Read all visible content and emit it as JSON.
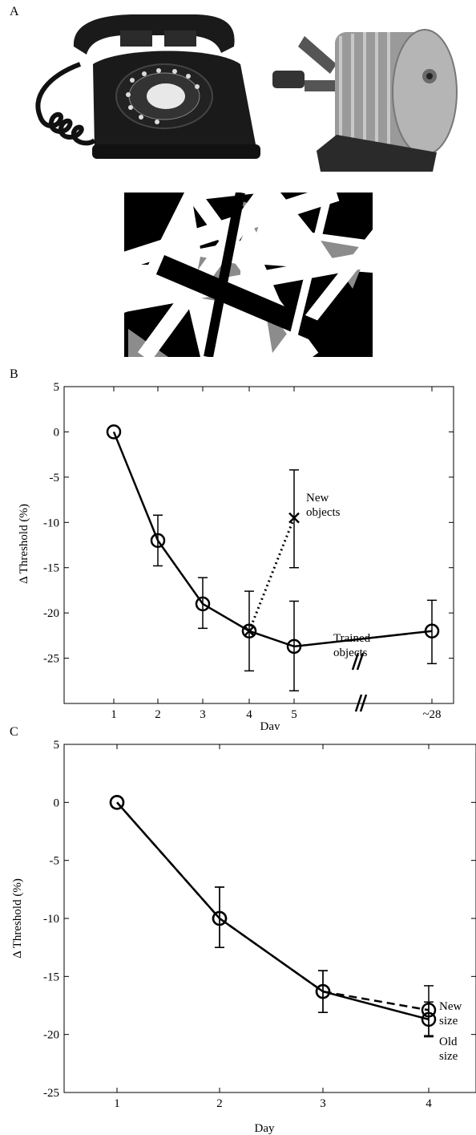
{
  "panels": {
    "a": "A",
    "b": "B",
    "c": "C"
  },
  "colors": {
    "ink": "#000000",
    "phone": "#1a1a1a",
    "metal": "#9a9a9a",
    "mask_gray": "#8c8c8c"
  },
  "icons": {
    "telephone": "rotary-telephone-icon",
    "sharpener": "pencil-sharpener-icon",
    "mask": "noise-mask-image"
  },
  "chart_data": [
    {
      "type": "line",
      "xlabel": "Day",
      "ylabel": "Δ Threshold (%)",
      "x_tick_labels": [
        "1",
        "2",
        "3",
        "4",
        "5",
        "~28"
      ],
      "yticks": [
        5,
        0,
        -5,
        -10,
        -15,
        -20,
        -25
      ],
      "ylim": [
        -30,
        5
      ],
      "axis_break": true,
      "series": [
        {
          "name": "Trained objects",
          "style": "solid",
          "marker": "circle",
          "x": [
            "1",
            "2",
            "3",
            "4",
            "5",
            "~28"
          ],
          "values": [
            0,
            -12,
            -19,
            -22,
            -23.7,
            -22
          ],
          "err_low": [
            null,
            -14.8,
            -21.7,
            -26.4,
            -28.6,
            -25.6
          ],
          "err_high": [
            null,
            -9.2,
            -16.1,
            -17.6,
            -18.7,
            -18.6
          ]
        },
        {
          "name": "New objects",
          "style": "dotted",
          "marker": "x",
          "x": [
            "4",
            "5"
          ],
          "values": [
            -22,
            -9.5
          ],
          "err_low": [
            null,
            -15
          ],
          "err_high": [
            null,
            -4.2
          ]
        }
      ]
    },
    {
      "type": "line",
      "xlabel": "Day",
      "ylabel": "Δ Threshold (%)",
      "x_tick_labels": [
        "1",
        "2",
        "3",
        "4"
      ],
      "yticks": [
        5,
        0,
        -5,
        -10,
        -15,
        -20,
        -25
      ],
      "ylim": [
        -25,
        5
      ],
      "series": [
        {
          "name": "Old size",
          "style": "solid",
          "marker": "circle",
          "x": [
            1,
            2,
            3,
            4
          ],
          "values": [
            0,
            -10,
            -16.3,
            -18.7
          ],
          "err_low": [
            null,
            -12.5,
            -18.1,
            -20.2
          ],
          "err_high": [
            null,
            -7.3,
            -14.5,
            -17.2
          ]
        },
        {
          "name": "New size",
          "style": "dashed",
          "marker": "circle",
          "x": [
            1,
            2,
            3,
            4
          ],
          "values": [
            0,
            -10,
            -16.3,
            -17.9
          ],
          "err_low": [
            null,
            -12.5,
            -18.1,
            -20.1
          ],
          "err_high": [
            null,
            -7.3,
            -14.5,
            -15.8
          ]
        }
      ]
    }
  ]
}
